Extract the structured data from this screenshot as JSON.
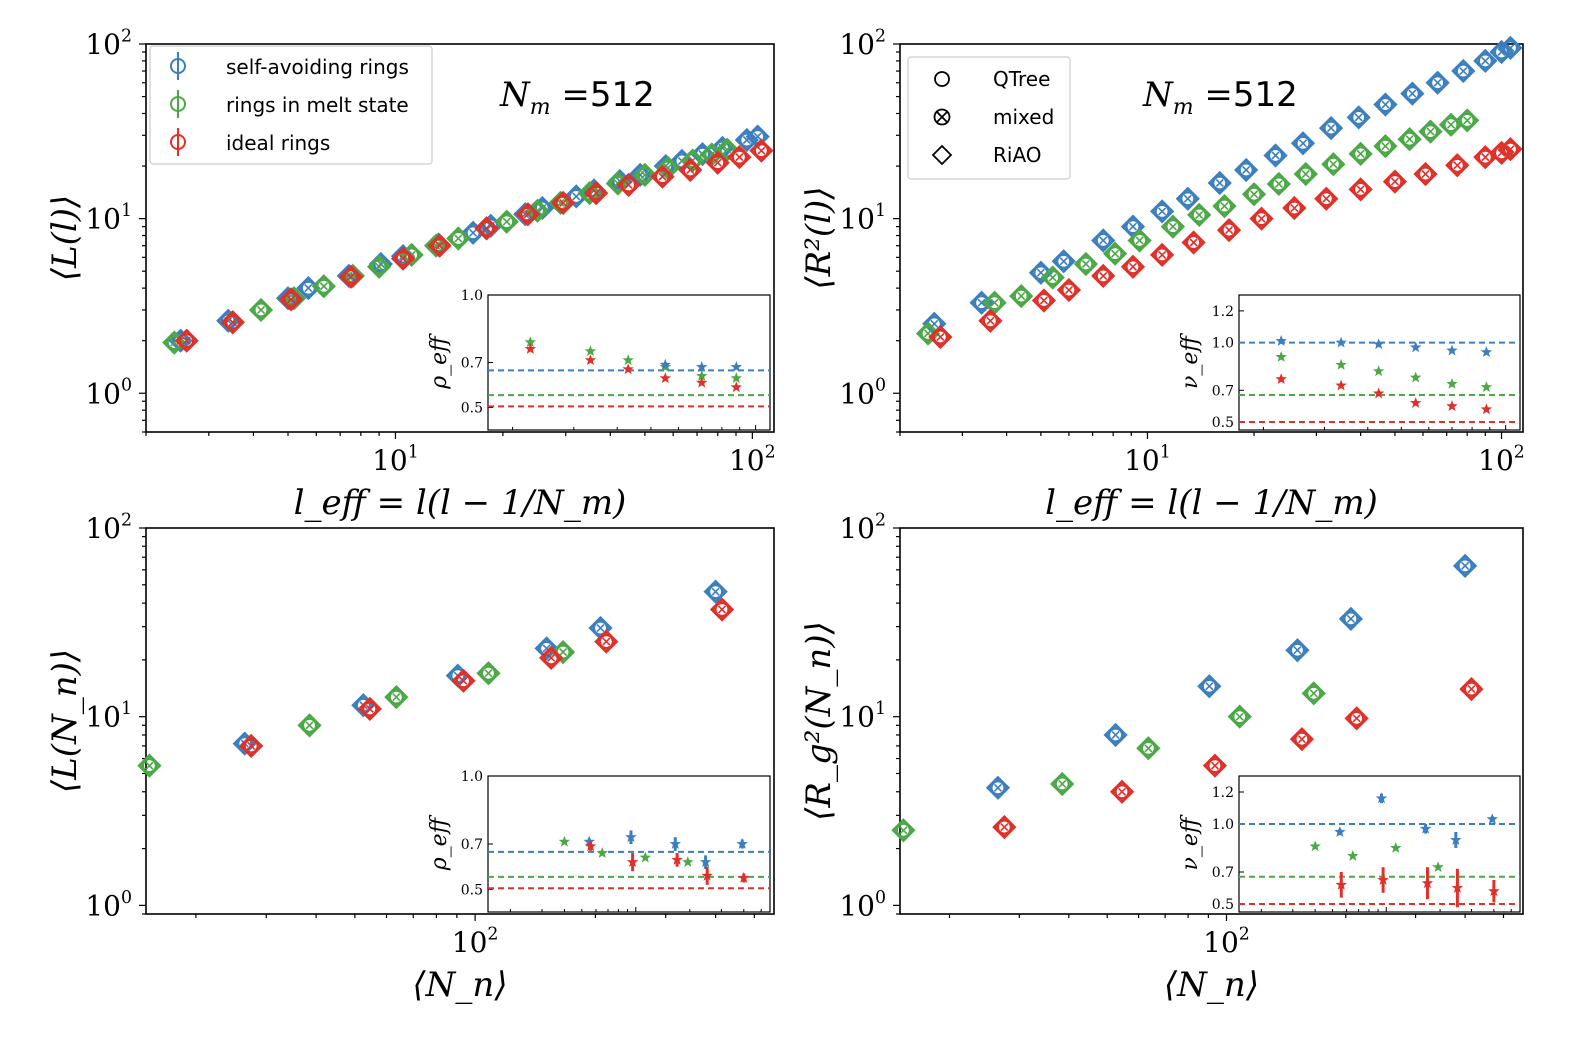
{
  "colors": {
    "blue": "#3c7fbf",
    "green": "#4ca847",
    "red": "#e0302a"
  },
  "legend_series": {
    "title_marker": "errorbar-circle",
    "items": [
      "self-avoiding rings",
      "rings in melt state",
      "ideal rings"
    ]
  },
  "legend_methods": {
    "items": [
      {
        "marker": "circle-icon",
        "label": "QTree"
      },
      {
        "marker": "x-in-circle-icon",
        "label": "mixed"
      },
      {
        "marker": "diamond-icon",
        "label": "RiAO"
      }
    ]
  },
  "annotation": {
    "text_italic": "N",
    "sub": "m",
    "eq": " =",
    "value": "512"
  },
  "chart_data": [
    {
      "id": "top-left",
      "type": "scatter",
      "xscale": "log",
      "yscale": "log",
      "xlim": [
        2.0,
        115
      ],
      "ylim": [
        0.6,
        100
      ],
      "xticks": [
        10,
        100
      ],
      "xtick_labels": [
        "10^1",
        "10^2"
      ],
      "yticks": [
        1,
        10,
        100
      ],
      "ytick_labels": [
        "10^0",
        "10^1",
        "10^2"
      ],
      "xlabel": "l_eff = l(l − 1/N_m)",
      "ylabel": "⟨L(l)⟩",
      "series": [
        {
          "name": "self-avoiding rings",
          "color": "blue",
          "x": [
            2.5,
            3.4,
            5.0,
            5.7,
            7.4,
            9.1,
            10.5,
            13.2,
            16.5,
            18.5,
            23.1,
            25.8,
            32.1,
            36.0,
            42.5,
            48.5,
            57.2,
            63.5,
            72.5,
            82.5,
            96.5,
            103.5
          ],
          "y": [
            2.0,
            2.6,
            3.5,
            4.0,
            4.7,
            5.5,
            6.1,
            7.1,
            8.3,
            9.1,
            10.6,
            11.5,
            13.4,
            14.5,
            16.4,
            17.8,
            20.0,
            21.4,
            23.4,
            25.4,
            28.2,
            29.5
          ]
        },
        {
          "name": "rings in melt state",
          "color": "green",
          "x": [
            2.4,
            3.5,
            4.2,
            5.2,
            6.3,
            7.6,
            9.0,
            11.1,
            13.0,
            15.0,
            18.0,
            20.5,
            25.0,
            29.0,
            35.0,
            42.0,
            50.0,
            58.0,
            68.0,
            77.0,
            85.0
          ],
          "y": [
            1.95,
            2.55,
            3.0,
            3.5,
            4.1,
            4.7,
            5.3,
            6.2,
            7.0,
            7.7,
            8.8,
            9.6,
            11.1,
            12.3,
            14.0,
            15.9,
            17.8,
            19.5,
            21.5,
            23.3,
            24.8
          ]
        },
        {
          "name": "ideal rings",
          "color": "red",
          "x": [
            2.6,
            3.5,
            5.1,
            7.5,
            10.5,
            13.3,
            18.0,
            23.5,
            29.5,
            36.5,
            45.0,
            56.0,
            67.0,
            80.0,
            92.0,
            106.0
          ],
          "y": [
            2.0,
            2.55,
            3.45,
            4.65,
            5.9,
            7.0,
            8.8,
            10.6,
            12.3,
            14.0,
            15.6,
            17.4,
            19.0,
            20.9,
            22.5,
            24.5
          ]
        }
      ],
      "inset": {
        "ylabel": "ρ_eff",
        "ylim": [
          0.4,
          1.0
        ],
        "yticks": [
          0.5,
          0.7,
          1.0
        ],
        "ytick_labels": [
          "0.5",
          "0.7",
          "1.0"
        ],
        "xlim": [
          17,
          110
        ],
        "hlines": [
          {
            "color": "blue",
            "y": 0.665
          },
          {
            "color": "green",
            "y": 0.555
          },
          {
            "color": "red",
            "y": 0.505
          }
        ],
        "series": [
          {
            "color": "green",
            "x": [
              22.5,
              33.5,
              43,
              55,
              70,
              88
            ],
            "y": [
              0.79,
              0.75,
              0.71,
              0.68,
              0.64,
              0.63
            ],
            "err": [
              0,
              0,
              0,
              0,
              0,
              0
            ]
          },
          {
            "color": "red",
            "x": [
              22.5,
              33.5,
              43,
              55,
              70,
              88
            ],
            "y": [
              0.76,
              0.71,
              0.67,
              0.63,
              0.61,
              0.59
            ],
            "err": [
              0,
              0,
              0,
              0,
              0,
              0
            ]
          },
          {
            "color": "blue",
            "x": [
              55,
              70,
              88
            ],
            "y": [
              0.69,
              0.68,
              0.68
            ],
            "err": [
              0,
              0,
              0
            ]
          }
        ]
      }
    },
    {
      "id": "top-right",
      "type": "scatter",
      "xscale": "log",
      "yscale": "log",
      "xlim": [
        2.0,
        115
      ],
      "ylim": [
        0.6,
        100
      ],
      "xticks": [
        10,
        100
      ],
      "xtick_labels": [
        "10^1",
        "10^2"
      ],
      "yticks": [
        1,
        10,
        100
      ],
      "ytick_labels": [
        "10^0",
        "10^1",
        "10^2"
      ],
      "xlabel": "l_eff = l(l − 1/N_m)",
      "ylabel": "⟨R²(l)⟩",
      "series": [
        {
          "name": "self-avoiding rings",
          "color": "blue",
          "x": [
            2.5,
            3.4,
            5.0,
            5.8,
            7.5,
            9.1,
            11.0,
            13.0,
            16.0,
            19.0,
            23.0,
            27.5,
            33.0,
            39.5,
            47.0,
            56.0,
            66.0,
            78.0,
            90.0,
            100.0,
            106.0
          ],
          "y": [
            2.5,
            3.3,
            4.9,
            5.7,
            7.5,
            9.0,
            11.0,
            13.0,
            16.0,
            19.0,
            23.0,
            27.0,
            33.0,
            38.0,
            45.0,
            52.0,
            60.0,
            70.0,
            80.0,
            90.0,
            95.0
          ]
        },
        {
          "name": "rings in melt state",
          "color": "green",
          "x": [
            2.4,
            3.7,
            4.4,
            5.4,
            6.7,
            8.1,
            9.5,
            11.8,
            14.0,
            16.5,
            20.0,
            23.5,
            28.0,
            33.5,
            40.0,
            47.0,
            55.0,
            63.0,
            72.0,
            80.0
          ],
          "y": [
            2.2,
            3.3,
            3.6,
            4.6,
            5.5,
            6.3,
            7.5,
            9.0,
            10.5,
            11.8,
            13.8,
            15.8,
            18.0,
            20.5,
            23.5,
            26.0,
            28.5,
            31.5,
            34.5,
            36.5
          ]
        },
        {
          "name": "ideal rings",
          "color": "red",
          "x": [
            2.6,
            3.6,
            5.1,
            6.0,
            7.5,
            9.1,
            11.0,
            13.5,
            17.0,
            21.0,
            26.0,
            32.0,
            40.0,
            50.0,
            61.0,
            75.0,
            90.0,
            100.0,
            106.0
          ],
          "y": [
            2.1,
            2.6,
            3.4,
            3.9,
            4.7,
            5.3,
            6.2,
            7.3,
            8.6,
            10.0,
            11.5,
            13.0,
            14.7,
            16.3,
            18.0,
            20.2,
            22.5,
            23.8,
            25.0
          ]
        }
      ],
      "inset": {
        "ylabel": "ν_eff",
        "ylim": [
          0.45,
          1.3
        ],
        "yticks": [
          0.5,
          0.7,
          1.0,
          1.2
        ],
        "ytick_labels": [
          "0.5",
          "0.7",
          "1.0",
          "1.2"
        ],
        "xlim": [
          17,
          110
        ],
        "hlines": [
          {
            "color": "blue",
            "y": 1.0
          },
          {
            "color": "green",
            "y": 0.67
          },
          {
            "color": "red",
            "y": 0.5
          }
        ],
        "series": [
          {
            "color": "blue",
            "x": [
              22.5,
              33.5,
              43,
              55,
              70,
              88
            ],
            "y": [
              1.01,
              1.0,
              0.99,
              0.97,
              0.95,
              0.94
            ],
            "err": [
              0,
              0,
              0,
              0,
              0,
              0
            ]
          },
          {
            "color": "green",
            "x": [
              22.5,
              33.5,
              43,
              55,
              70,
              88
            ],
            "y": [
              0.91,
              0.86,
              0.82,
              0.78,
              0.74,
              0.72
            ],
            "err": [
              0,
              0,
              0,
              0,
              0,
              0
            ]
          },
          {
            "color": "red",
            "x": [
              22.5,
              33.5,
              43,
              55,
              70,
              88
            ],
            "y": [
              0.77,
              0.73,
              0.68,
              0.62,
              0.6,
              0.58
            ],
            "err": [
              0,
              0,
              0,
              0,
              0,
              0
            ]
          }
        ]
      }
    },
    {
      "id": "bottom-left",
      "type": "scatter",
      "xscale": "log",
      "yscale": "log",
      "xlim": [
        15,
        560
      ],
      "ylim": [
        0.9,
        100
      ],
      "xticks": [
        100
      ],
      "xtick_labels": [
        "10^2"
      ],
      "yticks": [
        1,
        10,
        100
      ],
      "ytick_labels": [
        "10^0",
        "10^1",
        "10^2"
      ],
      "xlabel": "⟨N_n⟩",
      "ylabel": "⟨L(N_n)⟩",
      "series": [
        {
          "name": "self-avoiding rings",
          "color": "blue",
          "x": [
            26.5,
            52.5,
            90.5,
            151,
            206,
            400
          ],
          "y": [
            7.2,
            11.5,
            16.5,
            23.0,
            29.5,
            46.0
          ]
        },
        {
          "name": "rings in melt state",
          "color": "green",
          "x": [
            15.3,
            38.5,
            63.5,
            108,
            166
          ],
          "y": [
            5.5,
            9.0,
            12.7,
            17.0,
            22.0
          ]
        },
        {
          "name": "ideal rings",
          "color": "red",
          "x": [
            27.5,
            54.5,
            93.5,
            155,
            213,
            415
          ],
          "y": [
            7.0,
            11.0,
            15.5,
            20.5,
            25.0,
            37.0
          ]
        }
      ],
      "inset": {
        "ylabel": "ρ_eff",
        "ylim": [
          0.4,
          1.0
        ],
        "yticks": [
          0.5,
          0.7,
          1.0
        ],
        "ytick_labels": [
          "0.5",
          "0.7",
          "1.0"
        ],
        "xlim": [
          15,
          560
        ],
        "hlines": [
          {
            "color": "blue",
            "y": 0.665
          },
          {
            "color": "green",
            "y": 0.555
          },
          {
            "color": "red",
            "y": 0.505
          }
        ],
        "series": [
          {
            "color": "green",
            "x": [
              40,
              65,
              113,
              195
            ],
            "y": [
              0.71,
              0.66,
              0.64,
              0.62
            ],
            "err": [
              0,
              0,
              0,
              0
            ]
          },
          {
            "color": "blue",
            "x": [
              55,
              94,
              166,
              245,
              392
            ],
            "y": [
              0.71,
              0.73,
              0.7,
              0.62,
              0.7
            ],
            "err": [
              0.015,
              0.03,
              0.03,
              0.03,
              0.02
            ]
          },
          {
            "color": "red",
            "x": [
              56,
              96,
              170,
              250,
              400
            ],
            "y": [
              0.69,
              0.62,
              0.63,
              0.56,
              0.55
            ],
            "err": [
              0.02,
              0.04,
              0.03,
              0.04,
              0.02
            ]
          }
        ]
      }
    },
    {
      "id": "bottom-right",
      "type": "scatter",
      "xscale": "log",
      "yscale": "log",
      "xlim": [
        15,
        560
      ],
      "ylim": [
        0.9,
        100
      ],
      "xticks": [
        100
      ],
      "xtick_labels": [
        "10^2"
      ],
      "yticks": [
        1,
        10,
        100
      ],
      "ytick_labels": [
        "10^0",
        "10^1",
        "10^2"
      ],
      "xlabel": "⟨N_n⟩",
      "ylabel": "⟨R_g²(N_n)⟩",
      "series": [
        {
          "name": "self-avoiding rings",
          "color": "blue",
          "x": [
            26.5,
            52.5,
            90.5,
            151,
            206,
            400
          ],
          "y": [
            4.2,
            8.0,
            14.5,
            22.5,
            33.0,
            63.0
          ]
        },
        {
          "name": "rings in melt state",
          "color": "green",
          "x": [
            15.3,
            38.5,
            63.5,
            108,
            166
          ],
          "y": [
            2.5,
            4.4,
            6.8,
            10.0,
            13.3
          ]
        },
        {
          "name": "ideal rings",
          "color": "red",
          "x": [
            27.5,
            54.5,
            93.5,
            155,
            213,
            415
          ],
          "y": [
            2.6,
            4.0,
            5.5,
            7.6,
            9.8,
            14.0
          ]
        }
      ],
      "inset": {
        "ylabel": "ν_eff",
        "ylim": [
          0.45,
          1.3
        ],
        "yticks": [
          0.5,
          0.7,
          1.0,
          1.2
        ],
        "ytick_labels": [
          "0.5",
          "0.7",
          "1.0",
          "1.2"
        ],
        "xlim": [
          15,
          560
        ],
        "hlines": [
          {
            "color": "blue",
            "y": 1.0
          },
          {
            "color": "green",
            "y": 0.67
          },
          {
            "color": "red",
            "y": 0.5
          }
        ],
        "series": [
          {
            "color": "green",
            "x": [
              40,
              65,
              113,
              195
            ],
            "y": [
              0.86,
              0.8,
              0.85,
              0.73
            ],
            "err": [
              0,
              0,
              0,
              0
            ]
          },
          {
            "color": "blue",
            "x": [
              55,
              94,
              166,
              245,
              392
            ],
            "y": [
              0.95,
              1.16,
              0.97,
              0.9,
              1.03
            ],
            "err": [
              0.02,
              0.03,
              0.03,
              0.05,
              0.02
            ]
          },
          {
            "color": "red",
            "x": [
              56,
              96,
              170,
              250,
              400
            ],
            "y": [
              0.62,
              0.65,
              0.63,
              0.6,
              0.58
            ],
            "err": [
              0.08,
              0.08,
              0.1,
              0.12,
              0.07
            ]
          }
        ]
      }
    }
  ]
}
